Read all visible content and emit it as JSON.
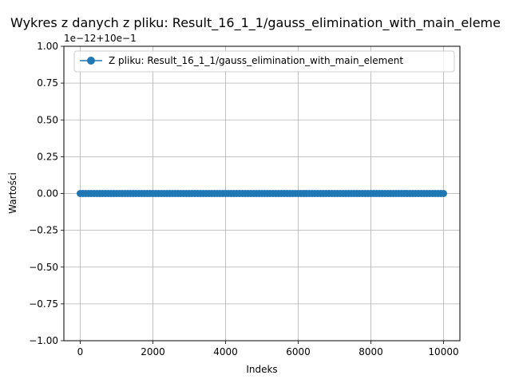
{
  "chart_data": {
    "type": "line",
    "title": "Wykres z danych z pliku: Result_16_1_1/gauss_elimination_with_main_eleme",
    "xlabel": "Indeks",
    "ylabel": "Wartości",
    "offset_text": "1e−12+10e−1",
    "xlim": [
      -450,
      10450
    ],
    "ylim": [
      -1.0,
      1.0
    ],
    "x_ticks": [
      0,
      2000,
      4000,
      6000,
      8000,
      10000
    ],
    "x_tick_labels": [
      "0",
      "2000",
      "4000",
      "6000",
      "8000",
      "10000"
    ],
    "y_ticks": [
      1.0,
      0.75,
      0.5,
      0.25,
      0.0,
      -0.25,
      -0.5,
      -0.75,
      -1.0
    ],
    "y_tick_labels": [
      "1.00",
      "0.75",
      "0.50",
      "0.25",
      "0.00",
      "−0.25",
      "−0.50",
      "−0.75",
      "−1.00"
    ],
    "grid": true,
    "legend_position": "top-right",
    "series": [
      {
        "name": "Z pliku: Result_16_1_1/gauss_elimination_with_main_element",
        "color": "#1f77b4",
        "marker": "circle",
        "x_start": 0,
        "x_end": 10000,
        "y_constant": 0.0
      }
    ]
  }
}
